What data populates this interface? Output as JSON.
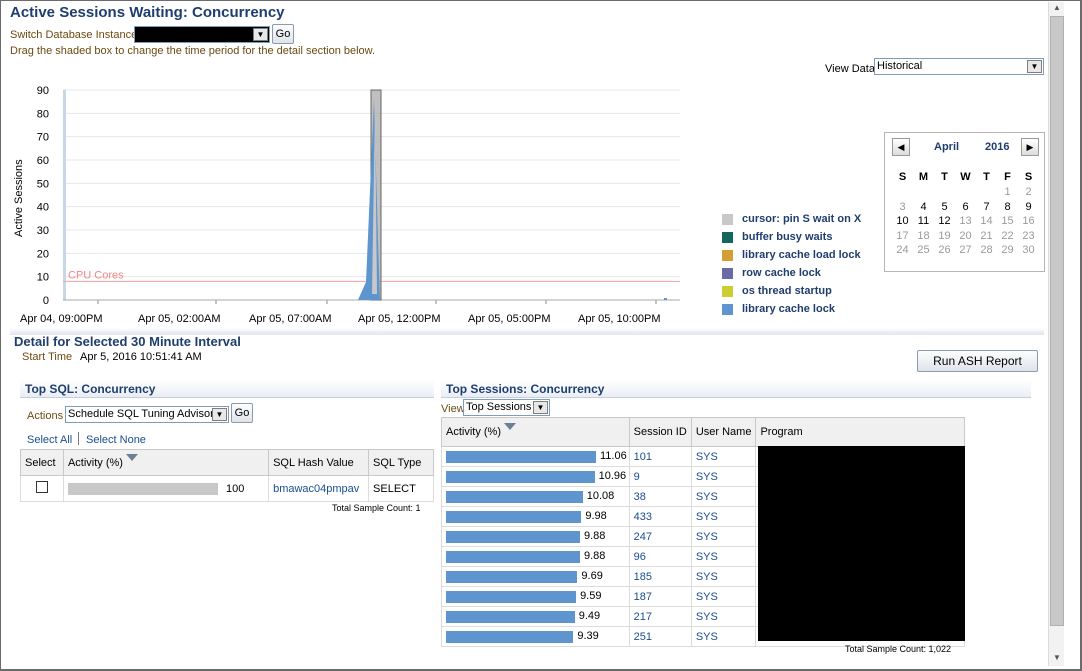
{
  "page_title": "Active Sessions Waiting: Concurrency",
  "switch_instance_label": "Switch Database Instance",
  "go_label": "Go",
  "drag_hint": "Drag the shaded box to change the time period for the detail section below.",
  "view_data_label": "View Data",
  "view_data_value": "Historical",
  "chart_data": {
    "type": "area",
    "ylabel": "Active Sessions",
    "ylim": [
      0,
      90
    ],
    "yticks": [
      0,
      10,
      20,
      30,
      40,
      50,
      60,
      70,
      80,
      90
    ],
    "xtick_labels": [
      "Apr 04, 09:00PM",
      "Apr 05, 02:00AM",
      "Apr 05, 07:00AM",
      "Apr 05, 12:00PM",
      "Apr 05, 05:00PM",
      "Apr 05, 10:00PM"
    ],
    "cpu_cores_label": "CPU Cores",
    "cpu_cores_value": 8,
    "series": [
      {
        "name": "cursor: pin S wait on X",
        "color": "#c8c8c8"
      },
      {
        "name": "buffer busy waits",
        "color": "#13665e"
      },
      {
        "name": "library cache load lock",
        "color": "#d39f35"
      },
      {
        "name": "row cache lock",
        "color": "#6a6aa6"
      },
      {
        "name": "os thread startup",
        "color": "#cccc33"
      },
      {
        "name": "library cache lock",
        "color": "#5e95cf"
      }
    ],
    "spike_peak": 86
  },
  "calendar": {
    "month": "April",
    "year": "2016",
    "prev_icon": "left-arrow-icon",
    "next_icon": "right-arrow-icon",
    "weekdays": [
      "S",
      "M",
      "T",
      "W",
      "T",
      "F",
      "S"
    ],
    "weeks": [
      [
        {
          "d": ""
        },
        {
          "d": ""
        },
        {
          "d": ""
        },
        {
          "d": ""
        },
        {
          "d": ""
        },
        {
          "d": "1",
          "dim": true
        },
        {
          "d": "2",
          "dim": true
        }
      ],
      [
        {
          "d": "3",
          "dim": true
        },
        {
          "d": "4"
        },
        {
          "d": "5"
        },
        {
          "d": "6"
        },
        {
          "d": "7"
        },
        {
          "d": "8"
        },
        {
          "d": "9"
        }
      ],
      [
        {
          "d": "10"
        },
        {
          "d": "11"
        },
        {
          "d": "12"
        },
        {
          "d": "13",
          "dim": true
        },
        {
          "d": "14",
          "dim": true
        },
        {
          "d": "15",
          "dim": true
        },
        {
          "d": "16",
          "dim": true
        }
      ],
      [
        {
          "d": "17",
          "dim": true
        },
        {
          "d": "18",
          "dim": true
        },
        {
          "d": "19",
          "dim": true
        },
        {
          "d": "20",
          "dim": true
        },
        {
          "d": "21",
          "dim": true
        },
        {
          "d": "22",
          "dim": true
        },
        {
          "d": "23",
          "dim": true
        }
      ],
      [
        {
          "d": "24",
          "dim": true
        },
        {
          "d": "25",
          "dim": true
        },
        {
          "d": "26",
          "dim": true
        },
        {
          "d": "27",
          "dim": true
        },
        {
          "d": "28",
          "dim": true
        },
        {
          "d": "29",
          "dim": true
        },
        {
          "d": "30",
          "dim": true
        }
      ]
    ]
  },
  "detail": {
    "title": "Detail for Selected 30 Minute Interval",
    "start_time_label": "Start Time",
    "start_time_value": "Apr 5, 2016 10:51:41 AM",
    "run_ash_label": "Run ASH Report"
  },
  "top_sql": {
    "title": "Top SQL: Concurrency",
    "actions_label": "Actions",
    "actions_value": "Schedule SQL Tuning Advisor",
    "go_label": "Go",
    "select_all": "Select All",
    "select_none": "Select None",
    "columns": [
      "Select",
      "Activity (%)",
      "SQL Hash Value",
      "SQL Type"
    ],
    "rows": [
      {
        "activity": 100,
        "activity_label": "100",
        "hash": "bmawac04pmpav",
        "type": "SELECT"
      }
    ],
    "total": "Total Sample Count: 1"
  },
  "top_sessions": {
    "title": "Top Sessions: Concurrency",
    "view_label": "View",
    "view_value": "Top Sessions",
    "columns": [
      "Activity (%)",
      "Session ID",
      "User Name",
      "Program"
    ],
    "rows": [
      {
        "activity": 11.06,
        "activity_label": "11.06",
        "sid": "101",
        "user": "SYS"
      },
      {
        "activity": 10.96,
        "activity_label": "10.96",
        "sid": "9",
        "user": "SYS"
      },
      {
        "activity": 10.08,
        "activity_label": "10.08",
        "sid": "38",
        "user": "SYS"
      },
      {
        "activity": 9.98,
        "activity_label": "9.98",
        "sid": "433",
        "user": "SYS"
      },
      {
        "activity": 9.88,
        "activity_label": "9.88",
        "sid": "247",
        "user": "SYS"
      },
      {
        "activity": 9.88,
        "activity_label": "9.88",
        "sid": "96",
        "user": "SYS"
      },
      {
        "activity": 9.69,
        "activity_label": "9.69",
        "sid": "185",
        "user": "SYS"
      },
      {
        "activity": 9.59,
        "activity_label": "9.59",
        "sid": "187",
        "user": "SYS"
      },
      {
        "activity": 9.49,
        "activity_label": "9.49",
        "sid": "217",
        "user": "SYS"
      },
      {
        "activity": 9.39,
        "activity_label": "9.39",
        "sid": "251",
        "user": "SYS"
      }
    ],
    "total": "Total Sample Count: 1,022"
  }
}
